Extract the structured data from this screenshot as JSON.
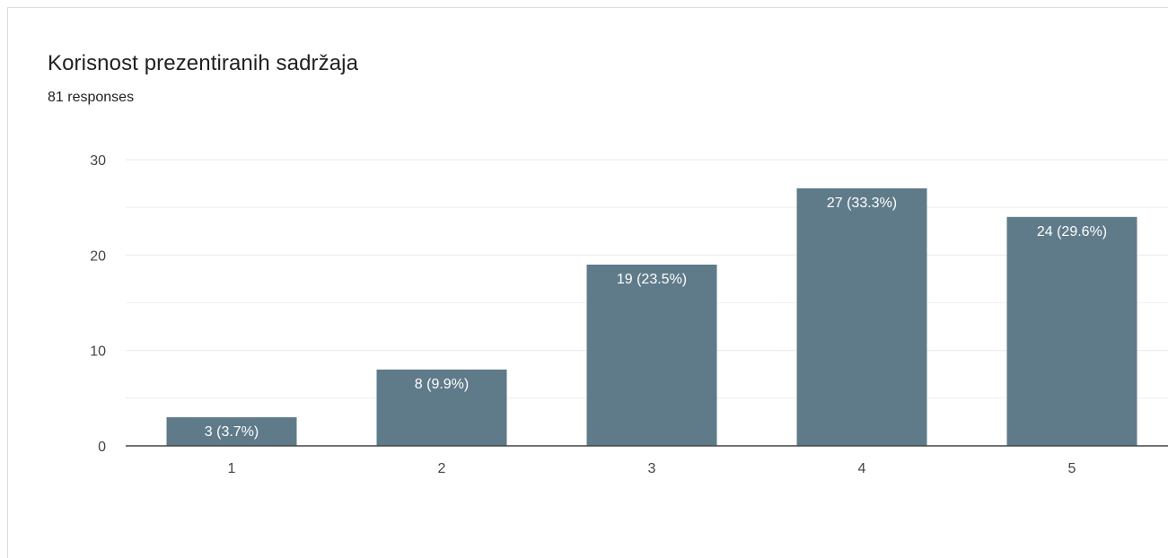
{
  "header": {
    "title": "Korisnost prezentiranih sadržaja",
    "subtitle": "81 responses"
  },
  "colors": {
    "bar": "#5f7b89",
    "grid": "#ececec",
    "axis": "#444444"
  },
  "chart_data": {
    "type": "bar",
    "title": "Korisnost prezentiranih sadržaja",
    "subtitle": "81 responses",
    "categories": [
      "1",
      "2",
      "3",
      "4",
      "5"
    ],
    "values": [
      3,
      8,
      19,
      27,
      24
    ],
    "data_labels": [
      "3 (3.7%)",
      "8 (9.9%)",
      "19 (23.5%)",
      "27 (33.3%)",
      "24 (29.6%)"
    ],
    "y_ticks": [
      "0",
      "10",
      "20",
      "30"
    ],
    "ylim": [
      0,
      30
    ],
    "xlabel": "",
    "ylabel": "",
    "grid": true,
    "legend": "none"
  }
}
